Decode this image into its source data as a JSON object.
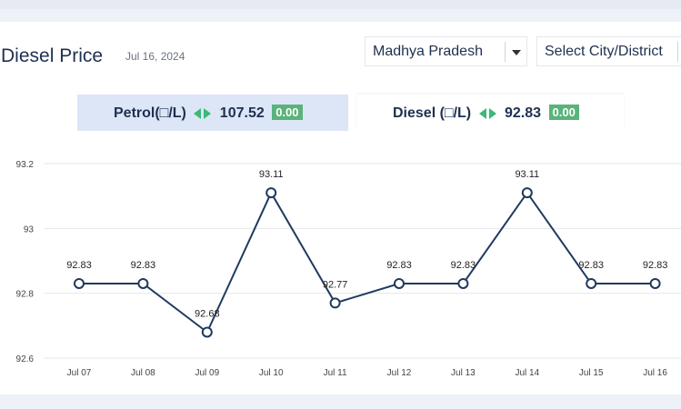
{
  "header": {
    "title": "Diesel Price",
    "date": "Jul 16, 2024"
  },
  "filters": {
    "state": "Madhya Pradesh",
    "city": "Select City/District"
  },
  "tabs": {
    "petrol": {
      "label": "Petrol(□/L)",
      "price": "107.52",
      "change": "0.00"
    },
    "diesel": {
      "label": "Diesel (□/L)",
      "price": "92.83",
      "change": "0.00"
    }
  },
  "colors": {
    "line": "#1f3a5f",
    "change_badge": "#59b37a",
    "arrow": "#3cb878"
  },
  "chart_data": {
    "type": "line",
    "categories": [
      "Jul 07",
      "Jul 08",
      "Jul 09",
      "Jul 10",
      "Jul 11",
      "Jul 12",
      "Jul 13",
      "Jul 14",
      "Jul 15",
      "Jul 16"
    ],
    "values": [
      92.83,
      92.83,
      92.68,
      93.11,
      92.77,
      92.83,
      92.83,
      93.11,
      92.83,
      92.83
    ],
    "data_labels": [
      "92.83",
      "92.83",
      "92.68",
      "93.11",
      "92.77",
      "92.83",
      "92.83",
      "93.11",
      "92.83",
      "92.83"
    ],
    "y_ticks": [
      "92.6",
      "92.8",
      "93",
      "93.2"
    ],
    "ylim": [
      92.6,
      93.2
    ],
    "grid": true,
    "title": "",
    "xlabel": "",
    "ylabel": ""
  }
}
